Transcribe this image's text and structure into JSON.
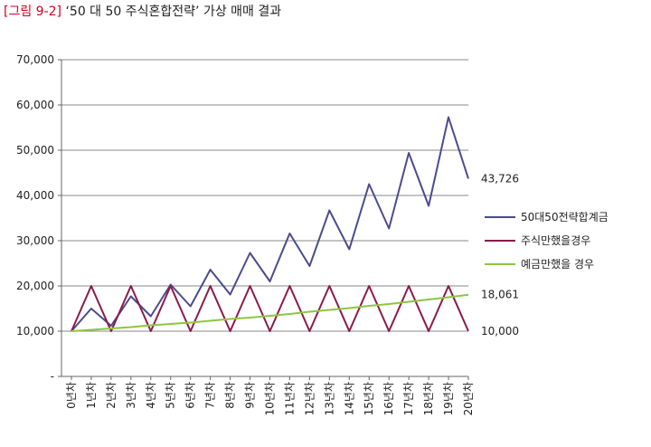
{
  "figure": {
    "tag": "[그림 9-2]",
    "title": "‘50 대 50 주식혼합전략’ 가상 매매 결과"
  },
  "chart_data": {
    "type": "line",
    "title": "",
    "xlabel": "",
    "ylabel": "",
    "ylim": [
      0,
      70000
    ],
    "yticks": [
      0,
      10000,
      20000,
      30000,
      40000,
      50000,
      60000,
      70000
    ],
    "ytick_labels": [
      "-",
      "10,000",
      "20,000",
      "30,000",
      "40,000",
      "50,000",
      "60,000",
      "70,000"
    ],
    "categories": [
      "0년차",
      "1년차",
      "2년차",
      "3년차",
      "4년차",
      "5년차",
      "6년차",
      "7년차",
      "8년차",
      "9년차",
      "10년차",
      "11년차",
      "12년차",
      "13년차",
      "14년차",
      "15년차",
      "16년차",
      "17년차",
      "18년차",
      "19년차",
      "20년차"
    ],
    "grid": true,
    "legend": "right",
    "series": [
      {
        "name": "50대50전략합계금",
        "color": "#4b4b8f",
        "values": [
          10000,
          15000,
          11200,
          17700,
          13300,
          20300,
          15500,
          23600,
          18100,
          27300,
          21000,
          31600,
          24400,
          36700,
          28100,
          42500,
          32700,
          49400,
          37700,
          57300,
          43726
        ],
        "end_label": "43,726"
      },
      {
        "name": "주식만했을경우",
        "color": "#8b1a4a",
        "values": [
          10000,
          20000,
          10000,
          20000,
          10000,
          20000,
          10000,
          20000,
          10000,
          20000,
          10000,
          20000,
          10000,
          20000,
          10000,
          20000,
          10000,
          20000,
          10000,
          20000,
          10000
        ],
        "end_label": "10,000"
      },
      {
        "name": "예금만했을 경우",
        "color": "#8dc63f",
        "values": [
          10000,
          10300,
          10600,
          10900,
          11300,
          11600,
          11900,
          12300,
          12700,
          13000,
          13400,
          13800,
          14300,
          14700,
          15100,
          15600,
          16000,
          16500,
          17000,
          17500,
          18061
        ],
        "end_label": "18,061"
      }
    ]
  }
}
